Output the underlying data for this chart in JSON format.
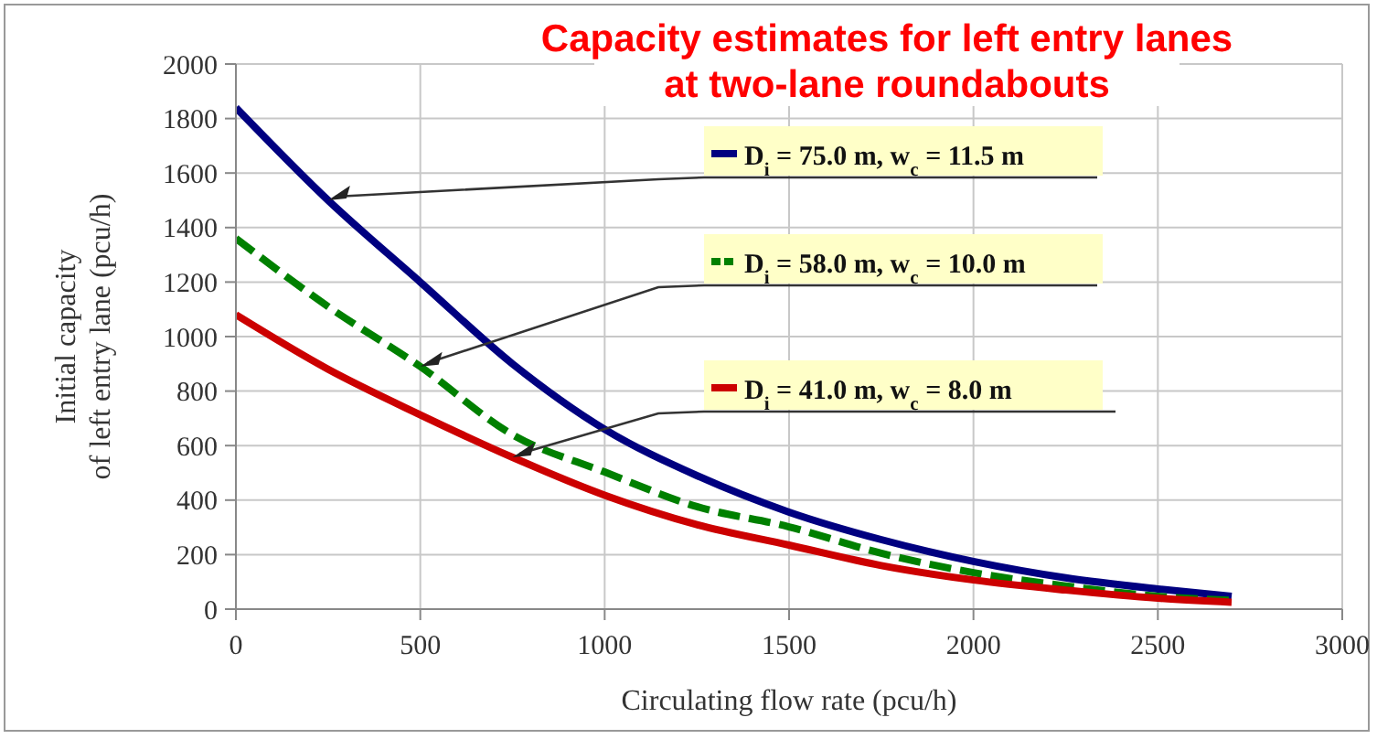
{
  "chart_data": {
    "type": "line",
    "title": "Capacity estimates for left entry lanes\nat two-lane roundabouts",
    "xlabel": "Circulating flow rate (pcu/h)",
    "ylabel": "Initial capacity\nof left entry lane (pcu/h)",
    "x": [
      0,
      250,
      500,
      750,
      1000,
      1250,
      1500,
      1750,
      2000,
      2250,
      2500,
      2700
    ],
    "series": [
      {
        "name": "D$_{i}$ = 75.0 m, w$_{c}$ = 11.5 m",
        "color": "#000080",
        "line_style": "solid",
        "values": [
          1840,
          1500,
          1200,
          900,
          660,
          490,
          356,
          255,
          175,
          115,
          74,
          47
        ]
      },
      {
        "name": "D$_{i}$ = 58.0 m, w$_{c}$ = 10.0 m",
        "color": "#008000",
        "line_style": "dashed",
        "values": [
          1360,
          1110,
          890,
          640,
          503,
          376,
          302,
          205,
          134,
          85,
          47,
          32
        ]
      },
      {
        "name": "D$_{i}$ = 41.0 m, w$_{c}$ = 8.0 m",
        "color": "#cc0000",
        "line_style": "solid",
        "values": [
          1080,
          880,
          713,
          557,
          418,
          310,
          235,
          160,
          107,
          70,
          40,
          25
        ]
      }
    ],
    "xlim": [
      0,
      3000
    ],
    "xticks": [
      0,
      500,
      1000,
      1500,
      2000,
      2500,
      3000
    ],
    "ylim": [
      0,
      2000
    ],
    "yticks": [
      0,
      200,
      400,
      600,
      800,
      1000,
      1200,
      1400,
      1600,
      1800,
      2000
    ],
    "grid": true,
    "legend": "top right",
    "marker": "none"
  }
}
